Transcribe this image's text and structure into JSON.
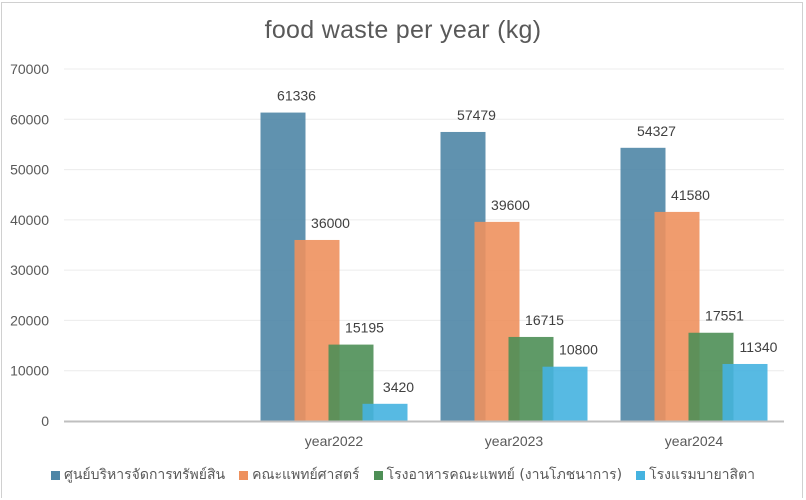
{
  "chart_data": {
    "type": "bar",
    "title": "food waste per year (kg)",
    "xlabel": "",
    "ylabel": "",
    "ylim": [
      0,
      70000
    ],
    "yticks": [
      0,
      10000,
      20000,
      30000,
      40000,
      50000,
      60000,
      70000
    ],
    "ytick_labels": [
      "0",
      "10000",
      "20000",
      "30000",
      "40000",
      "50000",
      "60000",
      "70000"
    ],
    "grid": true,
    "legend_position": "bottom",
    "categories": [
      "",
      "year2022",
      "year2023",
      "year2024"
    ],
    "series": [
      {
        "name": "ศูนย์บริหารจัดการทรัพย์สิน",
        "color": "#4f86a6",
        "values": [
          null,
          61336,
          57479,
          54327
        ]
      },
      {
        "name": "คณะแพทย์ศาสตร์",
        "color": "#ee915e",
        "values": [
          null,
          36000,
          39600,
          41580
        ]
      },
      {
        "name": "โรงอาหารคณะแพทย์ (งานโภชนาการ)",
        "color": "#4e8f56",
        "values": [
          null,
          15195,
          16715,
          17551
        ]
      },
      {
        "name": "โรงแรมบายาสิตา",
        "color": "#45b3e0",
        "values": [
          null,
          3420,
          10800,
          11340
        ]
      }
    ],
    "data_labels": true
  }
}
